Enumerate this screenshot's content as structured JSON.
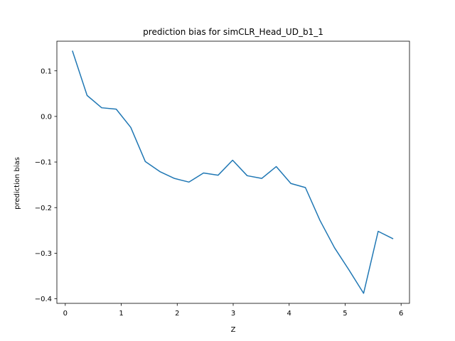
{
  "chart_data": {
    "type": "line",
    "title": "prediction bias for simCLR_Head_UD_b1_1",
    "xlabel": "Z",
    "ylabel": "prediction bias",
    "xlim": [
      -0.15,
      6.15
    ],
    "ylim": [
      -0.41,
      0.165
    ],
    "xticks": [
      0,
      1,
      2,
      3,
      4,
      5,
      6
    ],
    "xtick_labels": [
      "0",
      "1",
      "2",
      "3",
      "4",
      "5",
      "6"
    ],
    "yticks": [
      -0.4,
      -0.3,
      -0.2,
      -0.1,
      0.0,
      0.1
    ],
    "ytick_labels": [
      "−0.4",
      "−0.3",
      "−0.2",
      "−0.1",
      "0.0",
      "0.1"
    ],
    "grid": false,
    "series": [
      {
        "color": "#1f77b4",
        "x": [
          0.13,
          0.39,
          0.65,
          0.91,
          1.17,
          1.43,
          1.69,
          1.95,
          2.21,
          2.47,
          2.73,
          2.99,
          3.25,
          3.51,
          3.77,
          4.03,
          4.29,
          4.55,
          4.81,
          5.07,
          5.33,
          5.59,
          5.85
        ],
        "y": [
          0.143,
          0.046,
          0.019,
          0.016,
          -0.024,
          -0.099,
          -0.121,
          -0.136,
          -0.144,
          -0.124,
          -0.129,
          -0.096,
          -0.13,
          -0.136,
          -0.11,
          -0.147,
          -0.156,
          -0.228,
          -0.288,
          -0.337,
          -0.388,
          -0.252,
          -0.268
        ]
      }
    ]
  }
}
